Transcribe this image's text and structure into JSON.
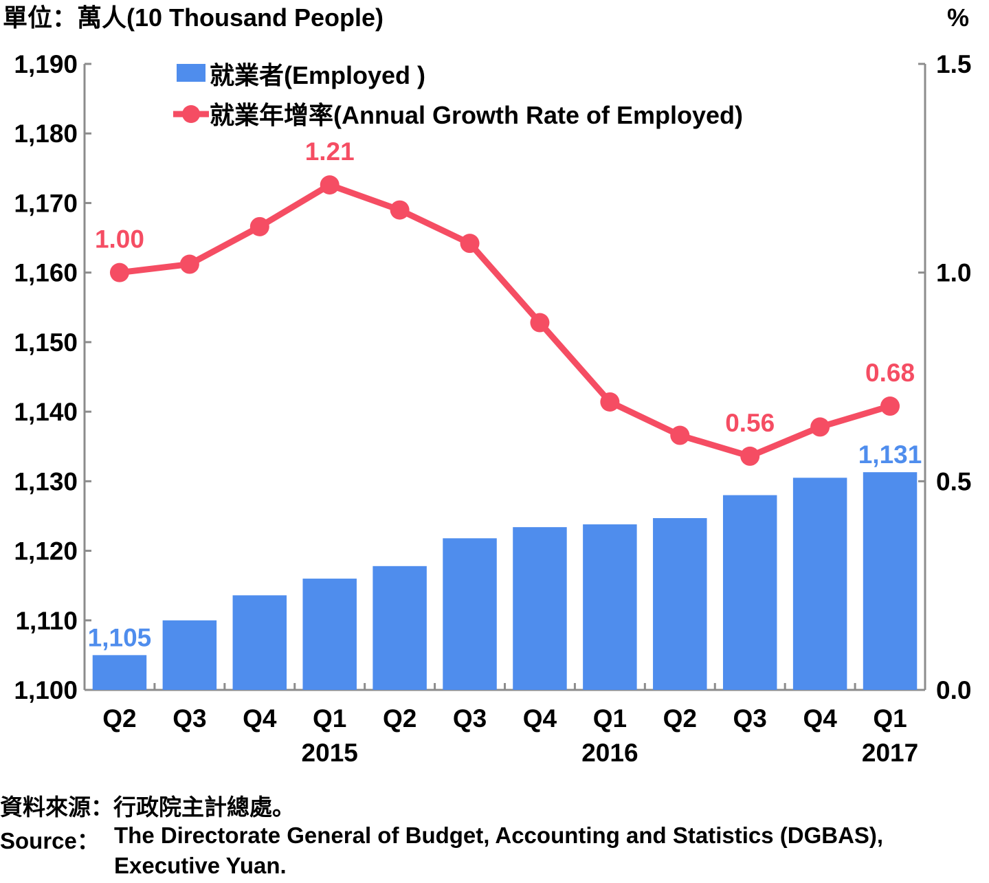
{
  "chart_data": {
    "type": "bar",
    "left_unit_label": "單位：萬人(10 Thousand People)",
    "right_unit_label": "%",
    "categories": [
      "Q2",
      "Q3",
      "Q4",
      "Q1",
      "Q2",
      "Q3",
      "Q4",
      "Q1",
      "Q2",
      "Q3",
      "Q4",
      "Q1"
    ],
    "year_labels": [
      {
        "label": "2015",
        "category_index": 3
      },
      {
        "label": "2016",
        "category_index": 7
      },
      {
        "label": "2017",
        "category_index": 11
      }
    ],
    "left_axis": {
      "ylim": [
        1100,
        1190
      ],
      "ticks": [
        "1,100",
        "1,110",
        "1,120",
        "1,130",
        "1,140",
        "1,150",
        "1,160",
        "1,170",
        "1,180",
        "1,190"
      ]
    },
    "right_axis": {
      "ylim": [
        0.0,
        1.5
      ],
      "ticks": [
        "0.0",
        "0.5",
        "1.0",
        "1.5"
      ]
    },
    "series": [
      {
        "name": "就業者(Employed )",
        "type": "bar",
        "axis": "left",
        "color": "#4f8ded",
        "values": [
          1105,
          1110,
          1113.6,
          1116,
          1117.8,
          1121.8,
          1123.4,
          1123.8,
          1124.7,
          1128,
          1130.5,
          1131.3
        ],
        "data_labels": [
          {
            "index": 0,
            "text": "1,105"
          },
          {
            "index": 11,
            "text": "1,131"
          }
        ]
      },
      {
        "name": "就業年增率(Annual Growth Rate of Employed)",
        "type": "line",
        "axis": "right",
        "color": "#f54d63",
        "values": [
          1.0,
          1.02,
          1.11,
          1.21,
          1.15,
          1.07,
          0.88,
          0.69,
          0.61,
          0.56,
          0.63,
          0.68
        ],
        "data_labels": [
          {
            "index": 0,
            "text": "1.00"
          },
          {
            "index": 3,
            "text": "1.21"
          },
          {
            "index": 9,
            "text": "0.56"
          },
          {
            "index": 11,
            "text": "0.68"
          }
        ]
      }
    ],
    "legend_position": "top-left",
    "grid": false
  },
  "source": {
    "zh": "資料來源：行政院主計總處。",
    "en_prefix": "Source：",
    "en_line1": "The Directorate General of Budget, Accounting and Statistics (DGBAS),",
    "en_line2": "Executive Yuan."
  }
}
